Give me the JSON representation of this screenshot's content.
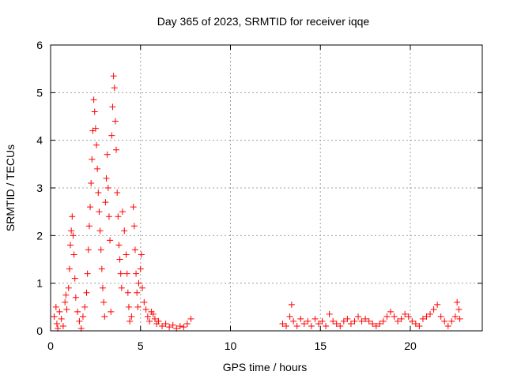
{
  "chart_data": {
    "type": "scatter",
    "title": "Day 365 of 2023, SRMTID for receiver iqqe",
    "xlabel": "GPS time / hours",
    "ylabel": "SRMTID / TECUs",
    "xlim": [
      0,
      24
    ],
    "ylim": [
      0,
      6
    ],
    "xticks": [
      0,
      5,
      10,
      15,
      20
    ],
    "yticks": [
      0,
      1,
      2,
      3,
      4,
      5,
      6
    ],
    "grid": true,
    "marker": "+",
    "colors": {
      "series": "#ff0000",
      "grid": "#a0a0a0",
      "axis": "#000000"
    },
    "series": [
      {
        "name": "SRMTID",
        "points": [
          [
            0.2,
            0.3
          ],
          [
            0.3,
            0.5
          ],
          [
            0.35,
            0.15
          ],
          [
            0.4,
            0.05
          ],
          [
            0.5,
            0.4
          ],
          [
            0.6,
            0.25
          ],
          [
            0.7,
            0.1
          ],
          [
            0.8,
            0.6
          ],
          [
            0.85,
            0.75
          ],
          [
            0.9,
            0.45
          ],
          [
            1.0,
            0.9
          ],
          [
            1.05,
            1.3
          ],
          [
            1.1,
            1.8
          ],
          [
            1.15,
            2.1
          ],
          [
            1.2,
            2.4
          ],
          [
            1.25,
            2.0
          ],
          [
            1.3,
            1.6
          ],
          [
            1.35,
            1.1
          ],
          [
            1.4,
            0.7
          ],
          [
            1.5,
            0.4
          ],
          [
            1.6,
            0.2
          ],
          [
            1.7,
            0.05
          ],
          [
            1.8,
            0.3
          ],
          [
            1.9,
            0.5
          ],
          [
            2.0,
            0.8
          ],
          [
            2.05,
            1.2
          ],
          [
            2.1,
            1.7
          ],
          [
            2.15,
            2.2
          ],
          [
            2.2,
            2.6
          ],
          [
            2.25,
            3.1
          ],
          [
            2.3,
            3.6
          ],
          [
            2.35,
            4.2
          ],
          [
            2.4,
            4.85
          ],
          [
            2.45,
            4.6
          ],
          [
            2.5,
            4.25
          ],
          [
            2.55,
            3.9
          ],
          [
            2.6,
            3.4
          ],
          [
            2.65,
            2.9
          ],
          [
            2.7,
            2.5
          ],
          [
            2.75,
            2.1
          ],
          [
            2.8,
            1.7
          ],
          [
            2.85,
            1.3
          ],
          [
            2.9,
            0.9
          ],
          [
            2.95,
            0.6
          ],
          [
            3.0,
            0.3
          ],
          [
            3.05,
            2.7
          ],
          [
            3.1,
            3.2
          ],
          [
            3.15,
            3.7
          ],
          [
            3.2,
            3.0
          ],
          [
            3.25,
            2.4
          ],
          [
            3.3,
            1.9
          ],
          [
            3.35,
            0.4
          ],
          [
            3.4,
            4.1
          ],
          [
            3.45,
            4.7
          ],
          [
            3.5,
            5.35
          ],
          [
            3.55,
            5.1
          ],
          [
            3.6,
            4.4
          ],
          [
            3.65,
            3.8
          ],
          [
            3.7,
            2.9
          ],
          [
            3.75,
            2.4
          ],
          [
            3.8,
            1.8
          ],
          [
            3.85,
            1.5
          ],
          [
            3.9,
            1.2
          ],
          [
            3.95,
            0.9
          ],
          [
            4.0,
            2.5
          ],
          [
            4.1,
            2.1
          ],
          [
            4.2,
            1.6
          ],
          [
            4.25,
            1.2
          ],
          [
            4.3,
            0.8
          ],
          [
            4.35,
            0.5
          ],
          [
            4.4,
            0.2
          ],
          [
            4.5,
            0.3
          ],
          [
            4.6,
            2.6
          ],
          [
            4.65,
            2.2
          ],
          [
            4.7,
            1.7
          ],
          [
            4.75,
            1.2
          ],
          [
            4.8,
            0.8
          ],
          [
            4.85,
            0.5
          ],
          [
            4.9,
            1.0
          ],
          [
            5.0,
            1.3
          ],
          [
            5.05,
            1.6
          ],
          [
            5.1,
            0.9
          ],
          [
            5.2,
            0.6
          ],
          [
            5.3,
            0.45
          ],
          [
            5.4,
            0.3
          ],
          [
            5.5,
            0.2
          ],
          [
            5.6,
            0.4
          ],
          [
            5.7,
            0.35
          ],
          [
            5.8,
            0.25
          ],
          [
            5.9,
            0.15
          ],
          [
            6.0,
            0.2
          ],
          [
            6.2,
            0.1
          ],
          [
            6.4,
            0.15
          ],
          [
            6.6,
            0.08
          ],
          [
            6.8,
            0.12
          ],
          [
            7.0,
            0.05
          ],
          [
            7.2,
            0.1
          ],
          [
            7.4,
            0.08
          ],
          [
            7.6,
            0.15
          ],
          [
            7.8,
            0.25
          ],
          [
            12.9,
            0.15
          ],
          [
            13.1,
            0.1
          ],
          [
            13.3,
            0.3
          ],
          [
            13.4,
            0.55
          ],
          [
            13.5,
            0.2
          ],
          [
            13.7,
            0.1
          ],
          [
            13.9,
            0.25
          ],
          [
            14.1,
            0.15
          ],
          [
            14.3,
            0.2
          ],
          [
            14.5,
            0.1
          ],
          [
            14.7,
            0.25
          ],
          [
            14.9,
            0.15
          ],
          [
            15.1,
            0.2
          ],
          [
            15.3,
            0.1
          ],
          [
            15.5,
            0.35
          ],
          [
            15.7,
            0.2
          ],
          [
            15.9,
            0.15
          ],
          [
            16.1,
            0.1
          ],
          [
            16.3,
            0.2
          ],
          [
            16.5,
            0.25
          ],
          [
            16.7,
            0.15
          ],
          [
            16.9,
            0.2
          ],
          [
            17.1,
            0.3
          ],
          [
            17.3,
            0.2
          ],
          [
            17.5,
            0.25
          ],
          [
            17.7,
            0.2
          ],
          [
            17.9,
            0.15
          ],
          [
            18.1,
            0.1
          ],
          [
            18.3,
            0.15
          ],
          [
            18.5,
            0.2
          ],
          [
            18.7,
            0.3
          ],
          [
            18.9,
            0.4
          ],
          [
            19.1,
            0.3
          ],
          [
            19.3,
            0.2
          ],
          [
            19.5,
            0.25
          ],
          [
            19.7,
            0.35
          ],
          [
            19.9,
            0.3
          ],
          [
            20.1,
            0.2
          ],
          [
            20.3,
            0.15
          ],
          [
            20.5,
            0.1
          ],
          [
            20.7,
            0.25
          ],
          [
            20.9,
            0.3
          ],
          [
            21.1,
            0.35
          ],
          [
            21.3,
            0.45
          ],
          [
            21.5,
            0.55
          ],
          [
            21.7,
            0.3
          ],
          [
            21.9,
            0.2
          ],
          [
            22.1,
            0.1
          ],
          [
            22.3,
            0.2
          ],
          [
            22.5,
            0.3
          ],
          [
            22.6,
            0.6
          ],
          [
            22.7,
            0.45
          ],
          [
            22.75,
            0.25
          ]
        ]
      }
    ]
  }
}
